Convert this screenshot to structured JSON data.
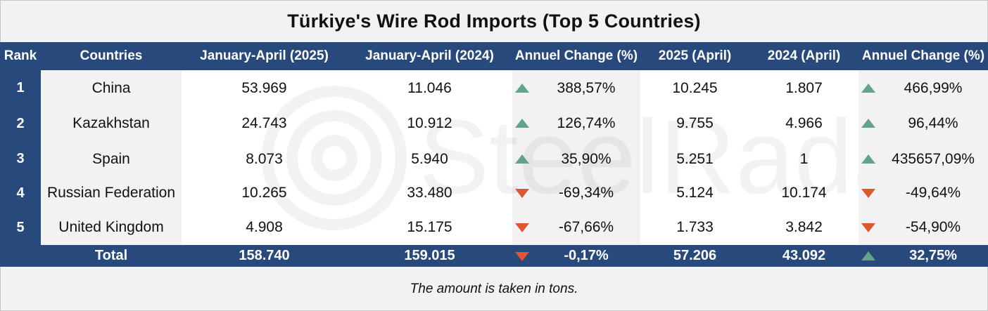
{
  "title": "Türkiye's Wire Rod Imports (Top 5 Countries)",
  "watermark": "SteelRadar",
  "note": "The amount is taken in tons.",
  "colors": {
    "header_bg": "#27497c",
    "up": "#63a387",
    "down": "#e0572e",
    "band": "#ffffff",
    "bg": "#f2f2f2"
  },
  "columns": [
    "Rank",
    "Countries",
    "January-April (2025)",
    "January-April (2024)",
    "Annuel Change (%)",
    "2025 (April)",
    "2024 (April)",
    "Annuel Change (%)"
  ],
  "chart_data": {
    "type": "table",
    "title": "Türkiye's Wire Rod Imports (Top 5 Countries)",
    "rows": [
      {
        "rank": "1",
        "country": "China",
        "jan_apr_2025": "53.969",
        "jan_apr_2024": "11.046",
        "change_ytd": "388,57%",
        "change_ytd_dir": "up",
        "apr_2025": "10.245",
        "apr_2024": "1.807",
        "change_apr": "466,99%",
        "change_apr_dir": "up"
      },
      {
        "rank": "2",
        "country": "Kazakhstan",
        "jan_apr_2025": "24.743",
        "jan_apr_2024": "10.912",
        "change_ytd": "126,74%",
        "change_ytd_dir": "up",
        "apr_2025": "9.755",
        "apr_2024": "4.966",
        "change_apr": "96,44%",
        "change_apr_dir": "up"
      },
      {
        "rank": "3",
        "country": "Spain",
        "jan_apr_2025": "8.073",
        "jan_apr_2024": "5.940",
        "change_ytd": "35,90%",
        "change_ytd_dir": "up",
        "apr_2025": "5.251",
        "apr_2024": "1",
        "change_apr": "435657,09%",
        "change_apr_dir": "up"
      },
      {
        "rank": "4",
        "country": "Russian Federation",
        "jan_apr_2025": "10.265",
        "jan_apr_2024": "33.480",
        "change_ytd": "-69,34%",
        "change_ytd_dir": "down",
        "apr_2025": "5.124",
        "apr_2024": "10.174",
        "change_apr": "-49,64%",
        "change_apr_dir": "down"
      },
      {
        "rank": "5",
        "country": "United Kingdom",
        "jan_apr_2025": "4.908",
        "jan_apr_2024": "15.175",
        "change_ytd": "-67,66%",
        "change_ytd_dir": "down",
        "apr_2025": "1.733",
        "apr_2024": "3.842",
        "change_apr": "-54,90%",
        "change_apr_dir": "down"
      }
    ],
    "total": {
      "label": "Total",
      "jan_apr_2025": "158.740",
      "jan_apr_2024": "159.015",
      "change_ytd": "-0,17%",
      "change_ytd_dir": "down",
      "apr_2025": "57.206",
      "apr_2024": "43.092",
      "change_apr": "32,75%",
      "change_apr_dir": "up"
    }
  }
}
